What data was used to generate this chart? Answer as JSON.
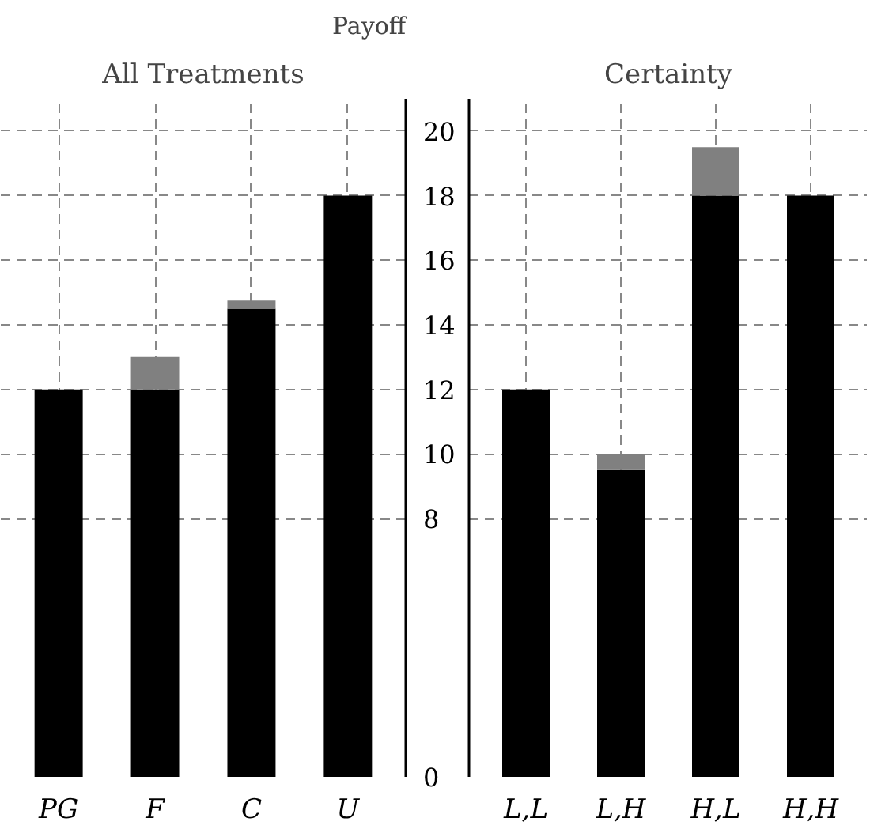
{
  "chart_data": [
    {
      "type": "bar",
      "title": "All Treatments",
      "ylabel": "Payoff",
      "categories": [
        "PG",
        "F",
        "C",
        "U"
      ],
      "stacked": true,
      "series": [
        {
          "color": "#000000",
          "values": [
            12,
            12,
            14.5,
            18
          ]
        },
        {
          "color": "#808080",
          "values": [
            0,
            1,
            0.25,
            0
          ]
        }
      ],
      "ylim": [
        0,
        21
      ],
      "yticks": [
        0,
        8,
        10,
        12,
        14,
        16,
        18,
        20
      ],
      "grid": true
    },
    {
      "type": "bar",
      "title": "Certainty",
      "categories": [
        "L,L",
        "L,H",
        "H,L",
        "H,H"
      ],
      "stacked": true,
      "series": [
        {
          "color": "#000000",
          "values": [
            12,
            9.5,
            18,
            18
          ]
        },
        {
          "color": "#808080",
          "values": [
            0,
            0.5,
            1.5,
            0
          ]
        }
      ],
      "ylim": [
        0,
        21
      ],
      "yticks": [
        0,
        8,
        10,
        12,
        14,
        16,
        18,
        20
      ],
      "grid": true,
      "tick_labels": "x"
    }
  ]
}
